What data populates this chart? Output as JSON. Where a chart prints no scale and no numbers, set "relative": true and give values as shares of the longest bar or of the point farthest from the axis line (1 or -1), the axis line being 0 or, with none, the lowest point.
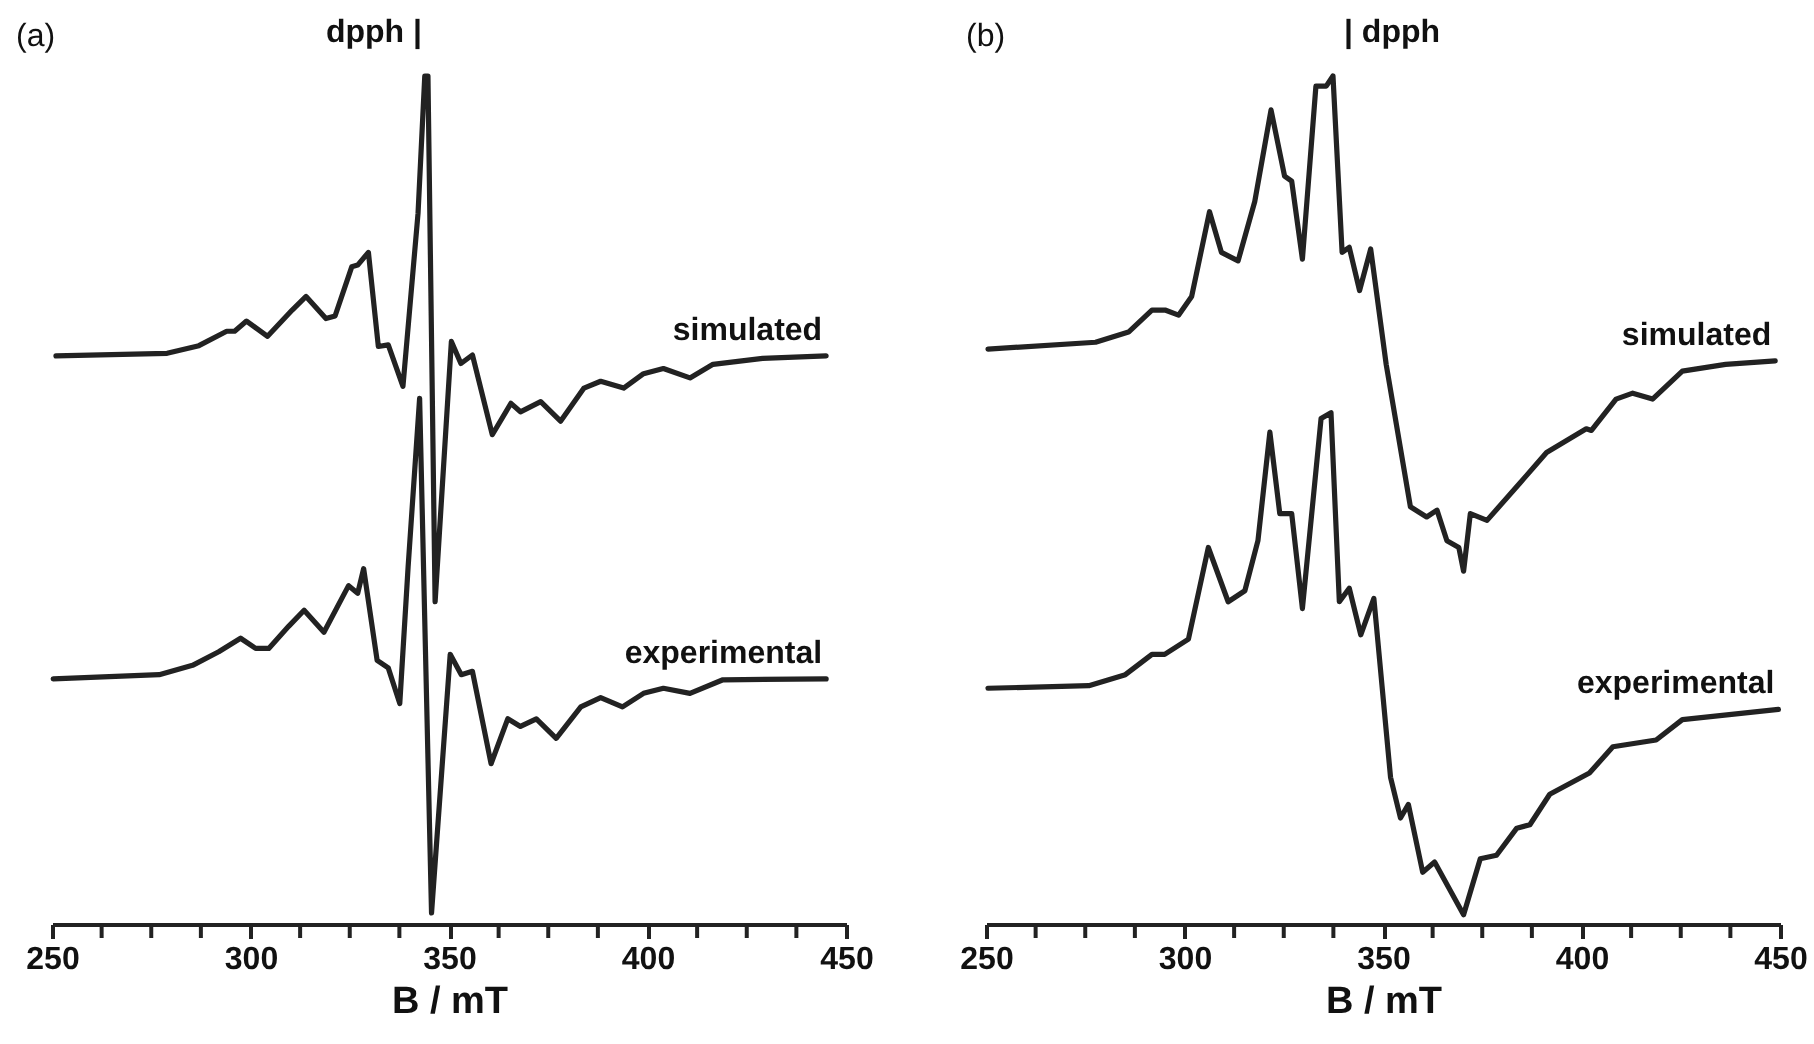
{
  "chart_data": [
    {
      "type": "line",
      "relative": true,
      "xlabel": "B / mT",
      "xlim": [
        250,
        450
      ],
      "xticks": [
        250,
        {
          "value": 262.5,
          "label": null
        },
        {
          "value": 275,
          "label": null
        },
        {
          "value": 287.5,
          "label": null
        },
        300,
        {
          "value": 312.5,
          "label": null
        },
        {
          "value": 325,
          "label": null
        },
        {
          "value": 337.5,
          "label": null
        },
        350,
        {
          "value": 362.5,
          "label": null
        },
        {
          "value": 375,
          "label": null
        },
        {
          "value": 387.5,
          "label": null
        },
        400,
        {
          "value": 412.5,
          "label": null
        },
        {
          "value": 425,
          "label": null
        },
        {
          "value": 437.5,
          "label": null
        },
        450
      ],
      "annotations": [
        "(a)",
        "dpph |"
      ],
      "series": [
        {
          "name": "simulated",
          "color": "#222222",
          "x": [
            251,
            279,
            287,
            294,
            296,
            299,
            304.3,
            310.5,
            314,
            319,
            321.3,
            325.5,
            327,
            329.7,
            332.2,
            334.7,
            338.4,
            342.2,
            343.9,
            344.7,
            346.5,
            350.6,
            353,
            355.9,
            360.9,
            365.6,
            368,
            373.1,
            378.1,
            384,
            388.2,
            394,
            399,
            404,
            410.7,
            416.5,
            429,
            445
          ],
          "values": [
            0.67,
            0.673,
            0.682,
            0.699,
            0.699,
            0.711,
            0.693,
            0.724,
            0.74,
            0.714,
            0.717,
            0.775,
            0.777,
            0.792,
            0.681,
            0.683,
            0.634,
            0.838,
            1,
            1,
            0.38,
            0.687,
            0.661,
            0.671,
            0.577,
            0.614,
            0.604,
            0.616,
            0.593,
            0.632,
            0.64,
            0.632,
            0.649,
            0.655,
            0.644,
            0.66,
            0.667,
            0.67
          ]
        },
        {
          "name": "experimental",
          "color": "#222222",
          "x": [
            250.3,
            277,
            285.4,
            292,
            297.5,
            301.3,
            304.6,
            309.6,
            313.5,
            318.5,
            324.7,
            327,
            328.5,
            331.9,
            334.7,
            337.6,
            339.7,
            342.6,
            345.6,
            350.3,
            353.1,
            355.9,
            360.6,
            364.8,
            368,
            372,
            377,
            383.2,
            388.2,
            393.7,
            399,
            404,
            410.7,
            419,
            445
          ],
          "values": [
            0.289,
            0.294,
            0.305,
            0.321,
            0.337,
            0.325,
            0.325,
            0.351,
            0.37,
            0.344,
            0.399,
            0.39,
            0.419,
            0.311,
            0.302,
            0.26,
            0.421,
            0.62,
            0.013,
            0.318,
            0.294,
            0.298,
            0.189,
            0.242,
            0.233,
            0.242,
            0.219,
            0.256,
            0.267,
            0.256,
            0.272,
            0.278,
            0.272,
            0.288,
            0.289
          ]
        }
      ]
    },
    {
      "type": "line",
      "relative": true,
      "xlabel": "B / mT",
      "xlim": [
        250,
        450
      ],
      "xticks": [
        250,
        {
          "value": 262.5,
          "label": null
        },
        {
          "value": 275,
          "label": null
        },
        {
          "value": 287.5,
          "label": null
        },
        300,
        {
          "value": 312.5,
          "label": null
        },
        {
          "value": 325,
          "label": null
        },
        {
          "value": 337.5,
          "label": null
        },
        350,
        {
          "value": 362.5,
          "label": null
        },
        {
          "value": 375,
          "label": null
        },
        {
          "value": 387.5,
          "label": null
        },
        400,
        {
          "value": 412.5,
          "label": null
        },
        {
          "value": 425,
          "label": null
        },
        {
          "value": 437.5,
          "label": null
        },
        450
      ],
      "annotations": [
        "(b)",
        "| dpph"
      ],
      "series": [
        {
          "name": "simulated",
          "color": "#222222",
          "x": [
            250.5,
            277.6,
            285.9,
            291.8,
            295.1,
            298.5,
            301.8,
            306.3,
            309.3,
            313.5,
            317.7,
            321.8,
            325.2,
            327,
            329.7,
            333.1,
            335.7,
            337.4,
            339.7,
            341.5,
            344.1,
            346.9,
            350.8,
            356.9,
            361,
            363.6,
            366.1,
            369.1,
            370.3,
            372,
            376.2,
            384.5,
            391.2,
            401.2,
            402.5,
            408.7,
            412.9,
            417.9,
            425.4,
            436.3,
            448.8
          ],
          "values": [
            0.678,
            0.686,
            0.698,
            0.724,
            0.724,
            0.718,
            0.74,
            0.84,
            0.792,
            0.782,
            0.852,
            0.96,
            0.882,
            0.876,
            0.784,
            0.988,
            0.988,
            1,
            0.792,
            0.798,
            0.747,
            0.796,
            0.66,
            0.492,
            0.48,
            0.488,
            0.452,
            0.444,
            0.416,
            0.484,
            0.476,
            0.52,
            0.556,
            0.584,
            0.582,
            0.619,
            0.626,
            0.619,
            0.652,
            0.66,
            0.664
          ]
        },
        {
          "name": "experimental",
          "color": "#222222",
          "x": [
            250.5,
            275.9,
            285.1,
            291.8,
            295,
            301,
            306,
            311,
            315.2,
            318.5,
            321.5,
            324,
            327,
            329.7,
            334.4,
            336.9,
            339,
            341.5,
            344.4,
            347.7,
            351.9,
            354.4,
            356.4,
            360,
            363,
            370.3,
            374.5,
            378.6,
            383.7,
            387,
            392,
            402,
            407.9,
            418.8,
            425.4,
            449.6
          ],
          "values": [
            0.278,
            0.281,
            0.294,
            0.318,
            0.318,
            0.336,
            0.444,
            0.38,
            0.393,
            0.452,
            0.58,
            0.484,
            0.484,
            0.372,
            0.596,
            0.603,
            0.38,
            0.396,
            0.341,
            0.384,
            0.173,
            0.125,
            0.141,
            0.061,
            0.073,
            0.011,
            0.077,
            0.081,
            0.113,
            0.117,
            0.153,
            0.178,
            0.209,
            0.217,
            0.241,
            0.253
          ]
        }
      ]
    }
  ]
}
